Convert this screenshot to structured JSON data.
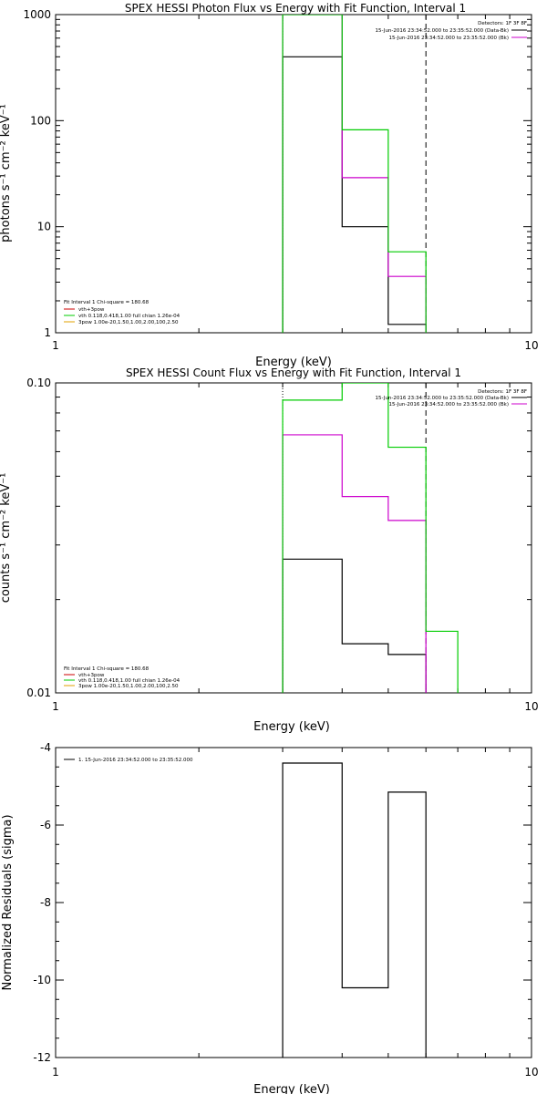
{
  "chart_data": [
    {
      "type": "line",
      "title": "SPEX HESSI Photon Flux vs Energy with Fit Function, Interval 1",
      "xlabel": "Energy (keV)",
      "ylabel": "photons s⁻¹ cm⁻² keV⁻¹",
      "xscale": "log",
      "yscale": "log",
      "xlim": [
        1,
        10
      ],
      "ylim": [
        1,
        1000
      ],
      "xticks": [
        "1",
        "10"
      ],
      "yticks": [
        "1",
        "10",
        "100",
        "1000"
      ],
      "vlines": [
        {
          "x": 3.0,
          "style": "dotted"
        },
        {
          "x": 6.0,
          "style": "dashed"
        }
      ],
      "detectors_label": "Detectors: 1F 3F 8F",
      "data_legend": [
        {
          "text": "15-Jun-2016 23:34:52.000 to 23:35:52.000 (Data-Bk)",
          "color": "#000000"
        },
        {
          "text": "15-Jun-2016 23:34:52.000 to 23:35:52.000 (Bk)",
          "color": "#cc00cc"
        }
      ],
      "fit_legend_title": "Fit Interval 1   Chi-square = 180.68",
      "fit_legend": [
        {
          "text": "vth+3pow",
          "color": "#cc0000"
        },
        {
          "text": "vth 0.118,0.418,1.00  full chian 1.26e-04",
          "color": "#00cc00"
        },
        {
          "text": "3pow 1.00e-20,1.50,1.00,2.00,100,2.50",
          "color": "#e0a000"
        }
      ],
      "series": [
        {
          "color": "#000000",
          "edges": [
            3.0,
            4.0,
            5.0,
            6.0
          ],
          "values": [
            400,
            10,
            1.2
          ]
        },
        {
          "color": "#cc00cc",
          "edges": [
            3.0,
            4.0,
            5.0,
            6.0
          ],
          "values": [
            1000,
            29,
            3.4
          ]
        },
        {
          "color": "#00cc00",
          "edges": [
            3.0,
            4.0,
            5.0,
            6.0
          ],
          "values": [
            1000,
            82,
            5.8
          ]
        }
      ]
    },
    {
      "type": "line",
      "title": "SPEX HESSI Count Flux vs Energy with Fit Function, Interval 1",
      "xlabel": "Energy (keV)",
      "ylabel": "counts s⁻¹ cm⁻² keV⁻¹",
      "xscale": "log",
      "yscale": "log",
      "xlim": [
        1,
        10
      ],
      "ylim": [
        0.01,
        0.1
      ],
      "xticks": [
        "1",
        "10"
      ],
      "yticks": [
        "0.01",
        "0.10"
      ],
      "vlines": [
        {
          "x": 3.0,
          "style": "dotted"
        },
        {
          "x": 6.0,
          "style": "dashed"
        }
      ],
      "detectors_label": "Detectors: 1F 3F 8F",
      "data_legend": [
        {
          "text": "15-Jun-2016 23:34:52.000 to 23:35:52.000 (Data-Bk)",
          "color": "#000000"
        },
        {
          "text": "15-Jun-2016 23:34:52.000 to 23:35:52.000 (Bk)",
          "color": "#cc00cc"
        }
      ],
      "fit_legend_title": "Fit Interval 1   Chi-square = 180.68",
      "fit_legend": [
        {
          "text": "vth+3pow",
          "color": "#cc0000"
        },
        {
          "text": "vth 0.118,0.418,1.00  full chian 1.26e-04",
          "color": "#00cc00"
        },
        {
          "text": "3pow 1.00e-20,1.50,1.00,2.00,100,2.50",
          "color": "#e0a000"
        }
      ],
      "series": [
        {
          "color": "#000000",
          "edges": [
            3.0,
            4.0,
            5.0,
            6.0
          ],
          "values": [
            0.027,
            0.0144,
            0.0133
          ]
        },
        {
          "color": "#cc00cc",
          "edges": [
            3.0,
            4.0,
            5.0,
            6.0
          ],
          "values": [
            0.068,
            0.043,
            0.036
          ]
        },
        {
          "color": "#00cc00",
          "edges": [
            3.0,
            4.0,
            5.0,
            6.0,
            7.0
          ],
          "values": [
            0.088,
            0.1,
            0.062,
            0.0158
          ]
        }
      ]
    },
    {
      "type": "line",
      "title": "",
      "xlabel": "Energy (keV)",
      "ylabel": "Normalized Residuals (sigma)",
      "xscale": "log",
      "yscale": "linear",
      "xlim": [
        1,
        10
      ],
      "ylim": [
        -12,
        -4
      ],
      "xticks": [
        "1",
        "10"
      ],
      "yticks": [
        "-4",
        "-6",
        "-8",
        "-10",
        "-12"
      ],
      "legend": [
        {
          "text": "1. 15-Jun-2016 23:34:52.000 to 23:35:52.000",
          "color": "#000000"
        }
      ],
      "series": [
        {
          "color": "#000000",
          "edges": [
            3.0,
            4.0,
            5.0,
            6.0
          ],
          "values": [
            -4.4,
            -10.2,
            -5.15
          ]
        }
      ]
    }
  ]
}
